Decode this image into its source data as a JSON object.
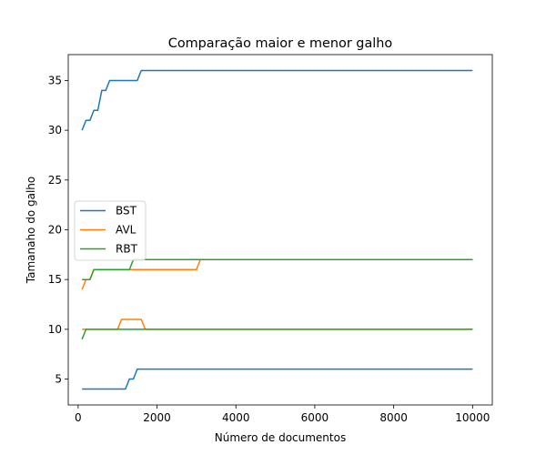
{
  "chart_data": {
    "type": "line",
    "title": "Comparação maior e menor galho",
    "xlabel": "Número de documentos",
    "ylabel": "Tamanaho do galho",
    "xlim": [
      -250,
      10500
    ],
    "ylim": [
      2.4,
      37.6
    ],
    "xticks": [
      0,
      2000,
      4000,
      6000,
      8000,
      10000
    ],
    "yticks": [
      5,
      10,
      15,
      20,
      25,
      30,
      35
    ],
    "grid": false,
    "legend_placement": "center-left",
    "legend": [
      "BST",
      "AVL",
      "RBT"
    ],
    "colors": {
      "BST": "#1f77b4",
      "AVL": "#ff7f0e",
      "RBT": "#2ca02c"
    },
    "series": [
      {
        "name": "BST",
        "role": "max",
        "x": [
          100,
          200,
          300,
          400,
          500,
          600,
          700,
          800,
          1500,
          1600,
          10000
        ],
        "y": [
          30,
          31,
          31,
          32,
          32,
          34,
          34,
          35,
          35,
          36,
          36
        ]
      },
      {
        "name": "BST",
        "role": "min",
        "x": [
          100,
          1200,
          1300,
          1400,
          1500,
          10000
        ],
        "y": [
          4,
          4,
          5,
          5,
          6,
          6
        ]
      },
      {
        "name": "AVL",
        "role": "max",
        "x": [
          100,
          200,
          300,
          400,
          3000,
          3100,
          10000
        ],
        "y": [
          14,
          15,
          15,
          16,
          16,
          17,
          17
        ]
      },
      {
        "name": "AVL",
        "role": "min",
        "x": [
          100,
          1000,
          1100,
          1600,
          1700,
          10000
        ],
        "y": [
          10,
          10,
          11,
          11,
          10,
          10
        ]
      },
      {
        "name": "RBT",
        "role": "max",
        "x": [
          100,
          300,
          400,
          1300,
          1400,
          10000
        ],
        "y": [
          15,
          15,
          16,
          16,
          17,
          17
        ]
      },
      {
        "name": "RBT",
        "role": "min",
        "x": [
          100,
          200,
          10000
        ],
        "y": [
          9,
          10,
          10
        ]
      }
    ]
  }
}
